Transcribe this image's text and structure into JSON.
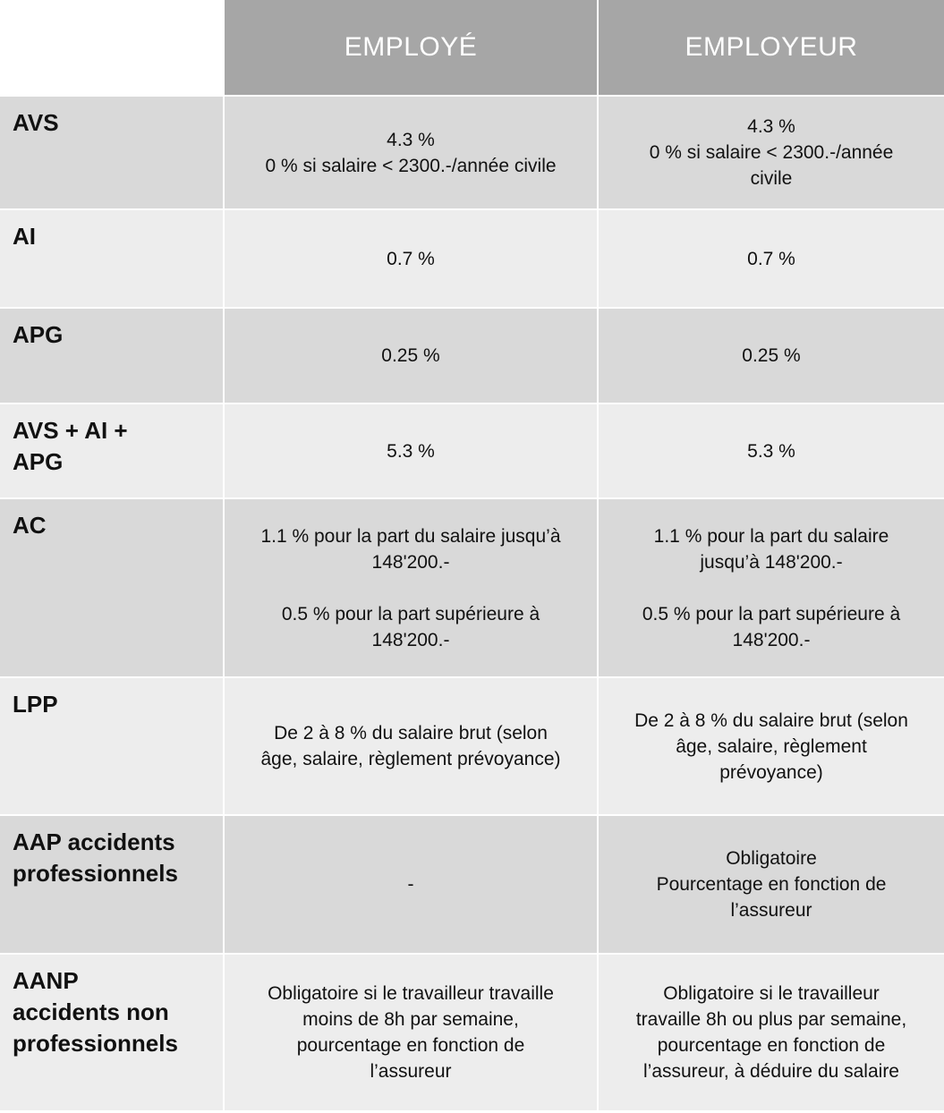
{
  "header": {
    "corner": "",
    "col1": "EMPLOYÉ",
    "col2": "EMPLOYEUR"
  },
  "rows": [
    {
      "label": "AVS",
      "employe": "4.3 %\n0 % si salaire < 2300.-/année civile",
      "employeur": "4.3 %\n0 % si salaire < 2300.-/année\ncivile"
    },
    {
      "label": "AI",
      "employe": "0.7 %",
      "employeur": "0.7 %"
    },
    {
      "label": "APG",
      "employe": "0.25 %",
      "employeur": "0.25 %"
    },
    {
      "label": "AVS + AI +\nAPG",
      "employe": "5.3 %",
      "employeur": "5.3 %"
    },
    {
      "label": "AC",
      "employe": "1.1 % pour la part du salaire jusqu’à\n148'200.-\n\n0.5 % pour la part supérieure à\n148'200.-",
      "employeur": "1.1 % pour la part du salaire\njusqu’à 148'200.-\n\n0.5 % pour la part supérieure à\n148'200.-"
    },
    {
      "label": "LPP",
      "employe": "De 2 à 8 % du salaire brut (selon\nâge, salaire, règlement prévoyance)",
      "employeur": "De 2 à 8 % du salaire brut (selon\nâge, salaire, règlement\nprévoyance)"
    },
    {
      "label": "AAP accidents\nprofessionnels",
      "employe": "-",
      "employeur": "Obligatoire\nPourcentage en fonction de\nl’assureur"
    },
    {
      "label": "AANP\naccidents non\nprofessionnels",
      "employe": "Obligatoire si le travailleur travaille\nmoins de 8h par semaine,\npourcentage en fonction de\nl’assureur",
      "employeur": "Obligatoire si le travailleur\ntravaille 8h ou plus par semaine,\npourcentage en fonction de\nl’assureur, à déduire du salaire"
    }
  ],
  "colors": {
    "header_bg": "#a6a6a6",
    "row_dark": "#d9d9d9",
    "row_light": "#ededed",
    "text": "#111111"
  }
}
